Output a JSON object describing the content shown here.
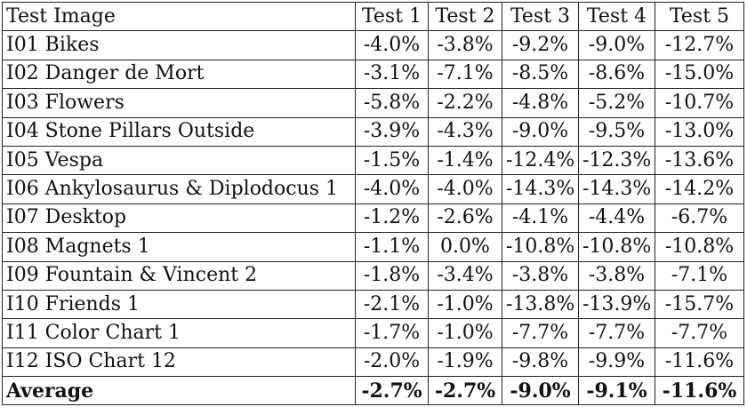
{
  "table": {
    "headers": [
      "Test Image",
      "Test 1",
      "Test 2",
      "Test 3",
      "Test 4",
      "Test 5"
    ],
    "rows": [
      [
        "I01 Bikes",
        "-4.0%",
        "-3.8%",
        "-9.2%",
        "-9.0%",
        "-12.7%"
      ],
      [
        "I02 Danger de Mort",
        "-3.1%",
        "-7.1%",
        "-8.5%",
        "-8.6%",
        "-15.0%"
      ],
      [
        "I03 Flowers",
        "-5.8%",
        "-2.2%",
        "-4.8%",
        "-5.2%",
        "-10.7%"
      ],
      [
        "I04 Stone Pillars Outside",
        "-3.9%",
        "-4.3%",
        "-9.0%",
        "-9.5%",
        "-13.0%"
      ],
      [
        "I05 Vespa",
        "-1.5%",
        "-1.4%",
        "-12.4%",
        "-12.3%",
        "-13.6%"
      ],
      [
        "I06 Ankylosaurus & Diplodocus 1",
        "-4.0%",
        "-4.0%",
        "-14.3%",
        "-14.3%",
        "-14.2%"
      ],
      [
        "I07 Desktop",
        "-1.2%",
        "-2.6%",
        "-4.1%",
        "-4.4%",
        "-6.7%"
      ],
      [
        "I08 Magnets 1",
        "-1.1%",
        "0.0%",
        "-10.8%",
        "-10.8%",
        "-10.8%"
      ],
      [
        "I09 Fountain & Vincent 2",
        "-1.8%",
        "-3.4%",
        "-3.8%",
        "-3.8%",
        "-7.1%"
      ],
      [
        "I10 Friends 1",
        "-2.1%",
        "-1.0%",
        "-13.8%",
        "-13.9%",
        "-15.7%"
      ],
      [
        "I11 Color Chart 1",
        "-1.7%",
        "-1.0%",
        "-7.7%",
        "-7.7%",
        "-7.7%"
      ],
      [
        "I12 ISO Chart 12",
        "-2.0%",
        "-1.9%",
        "-9.8%",
        "-9.9%",
        "-11.6%"
      ]
    ],
    "average": [
      "Average",
      "-2.7%",
      "-2.7%",
      "-9.0%",
      "-9.1%",
      "-11.6%"
    ]
  }
}
